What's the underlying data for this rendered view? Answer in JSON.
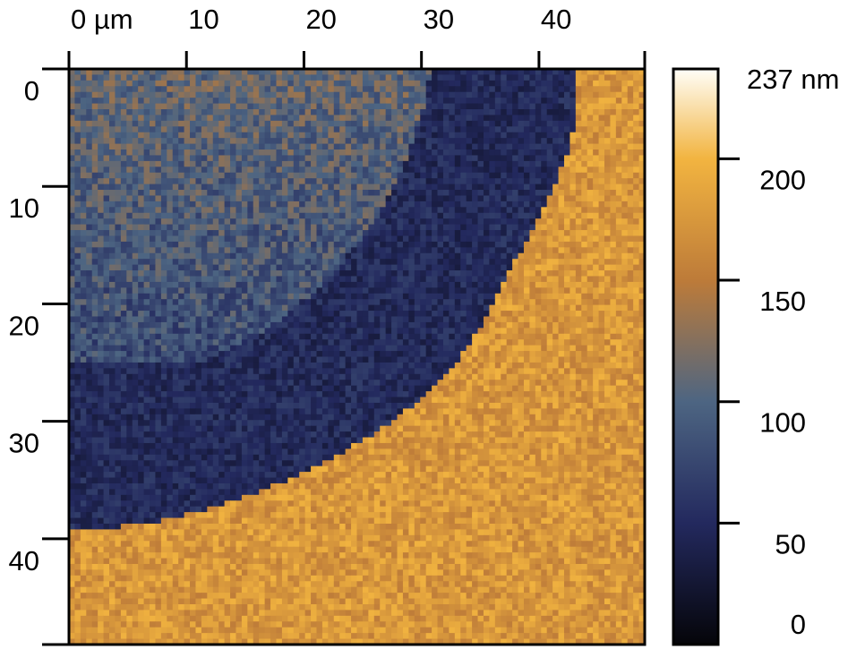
{
  "chart_data": {
    "type": "heatmap",
    "title": "",
    "x_axis": {
      "range": [
        0,
        49
      ],
      "ticks": [
        0,
        10,
        20,
        30,
        40
      ],
      "tick_labels": [
        "0 µm",
        "10",
        "20",
        "30",
        "40"
      ],
      "position": "top"
    },
    "y_axis": {
      "range": [
        0,
        49
      ],
      "ticks": [
        0,
        10,
        20,
        30,
        40
      ],
      "tick_labels": [
        "0",
        "10",
        "20",
        "30",
        "40"
      ],
      "direction": "top-to-bottom"
    },
    "colorbar": {
      "range": [
        0,
        237
      ],
      "ticks": [
        0,
        50,
        100,
        150,
        200,
        237
      ],
      "tick_labels": [
        "0",
        "50",
        "100",
        "150",
        "200",
        "237 nm"
      ],
      "colormap_stops": [
        {
          "value": 0,
          "color": "#050509"
        },
        {
          "value": 50,
          "color": "#23295e"
        },
        {
          "value": 100,
          "color": "#4d6582"
        },
        {
          "value": 150,
          "color": "#bd7b39"
        },
        {
          "value": 200,
          "color": "#f2b440"
        },
        {
          "value": 237,
          "color": "#fffef8"
        }
      ]
    },
    "regions": [
      {
        "name": "background",
        "height_nm": 175
      },
      {
        "name": "arc-ring",
        "height_nm": 50
      },
      {
        "name": "top-left-transition",
        "height_nm": 110
      },
      {
        "name": "lower-left-corner",
        "height_nm": 180
      }
    ]
  }
}
